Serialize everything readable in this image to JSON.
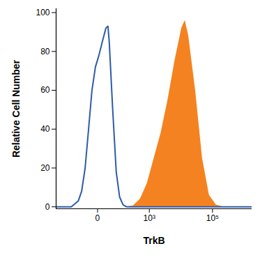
{
  "chart_data": {
    "type": "area",
    "x_label": "TrkB",
    "y_label": "Relative Cell Number",
    "x": [
      -460,
      -137,
      -73,
      -52,
      -35,
      -22,
      -12,
      -4,
      2.5,
      10,
      20,
      27,
      32,
      48,
      69,
      95,
      129,
      172,
      299,
      509,
      855,
      1423,
      2364,
      3910,
      6460,
      10680,
      13720,
      17620,
      29070,
      47930,
      79030,
      130350,
      214900,
      1750000
    ],
    "series": [
      {
        "type": "area",
        "color": "#f58220",
        "values": [
          0,
          0,
          0,
          0,
          0,
          0,
          0,
          0,
          0,
          0,
          0,
          0,
          0,
          0,
          0,
          0,
          0,
          0,
          0.5,
          4,
          12,
          25,
          38,
          55,
          75,
          92,
          96,
          88,
          60,
          25,
          6,
          1,
          0,
          0
        ]
      },
      {
        "type": "line",
        "color": "#2d5ba8",
        "values": [
          0,
          0,
          3,
          8,
          20,
          40,
          60,
          72,
          78,
          85,
          92,
          93,
          85,
          50,
          18,
          5,
          1,
          0,
          0,
          0,
          0,
          0,
          0,
          0,
          0,
          0,
          0,
          0,
          0,
          0,
          0,
          0,
          0,
          0
        ]
      }
    ],
    "xlim": [
      -460,
      1750000
    ],
    "xticks": [
      0,
      {
        "value": 1000,
        "label": "10³"
      },
      {
        "value": 100000,
        "label": "10⁵"
      }
    ],
    "ylim": [
      -1,
      102
    ],
    "yticks": [
      0,
      20,
      40,
      60,
      80,
      100
    ],
    "grid": false
  }
}
